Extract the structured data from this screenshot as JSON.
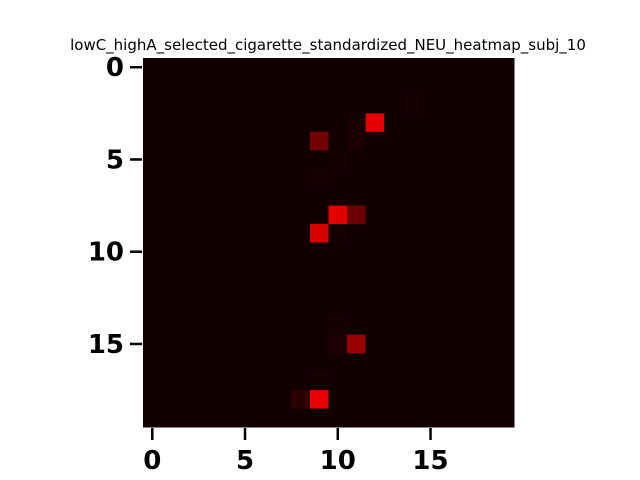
{
  "chart_data": {
    "type": "heatmap",
    "title": "lowC_highA_selected_cigarette_standardized_NEU_heatmap_subj_10",
    "xlabel": "",
    "ylabel": "",
    "n_rows": 20,
    "n_cols": 20,
    "xlim": [
      -0.5,
      19.5
    ],
    "ylim": [
      19.5,
      -0.5
    ],
    "x_ticks": [
      0,
      5,
      10,
      15
    ],
    "y_ticks": [
      0,
      5,
      10,
      15
    ],
    "x_tick_labels": [
      "0",
      "5",
      "10",
      "15"
    ],
    "y_tick_labels": [
      "0",
      "5",
      "10",
      "15"
    ],
    "colormap": {
      "low": "#0d0000",
      "mid": "#800000",
      "high": "#ff0000"
    },
    "value_range": [
      0,
      1
    ],
    "background_value": 0.02,
    "cells": [
      {
        "row": 2,
        "col": 14,
        "value": 0.04
      },
      {
        "row": 3,
        "col": 12,
        "value": 0.9
      },
      {
        "row": 3,
        "col": 11,
        "value": 0.05
      },
      {
        "row": 4,
        "col": 9,
        "value": 0.45
      },
      {
        "row": 4,
        "col": 11,
        "value": 0.06
      },
      {
        "row": 5,
        "col": 10,
        "value": 0.04
      },
      {
        "row": 6,
        "col": 9,
        "value": 0.03
      },
      {
        "row": 8,
        "col": 10,
        "value": 0.88
      },
      {
        "row": 8,
        "col": 11,
        "value": 0.42
      },
      {
        "row": 9,
        "col": 9,
        "value": 0.85
      },
      {
        "row": 9,
        "col": 10,
        "value": 0.04
      },
      {
        "row": 15,
        "col": 10,
        "value": 0.08
      },
      {
        "row": 15,
        "col": 11,
        "value": 0.6
      },
      {
        "row": 14,
        "col": 10,
        "value": 0.04
      },
      {
        "row": 18,
        "col": 8,
        "value": 0.14
      },
      {
        "row": 18,
        "col": 9,
        "value": 0.92
      },
      {
        "row": 17,
        "col": 9,
        "value": 0.04
      }
    ]
  }
}
